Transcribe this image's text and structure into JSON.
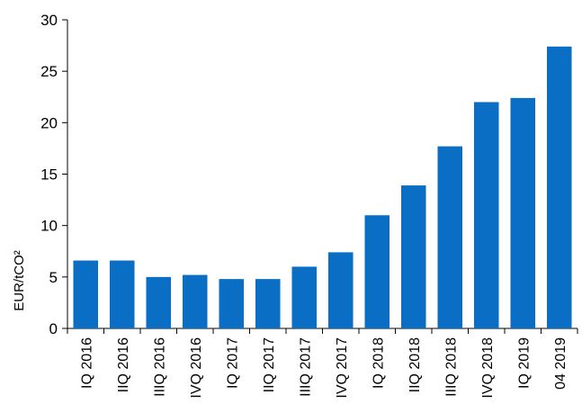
{
  "chart_data": {
    "type": "bar",
    "title": "",
    "xlabel": "",
    "ylabel": "EUR/tCO²",
    "ylim": [
      0,
      30
    ],
    "yticks": [
      0,
      5,
      10,
      15,
      20,
      25,
      30
    ],
    "grid": false,
    "legend": "none",
    "bar_color": "#0A6EC4",
    "categories": [
      "IQ 2016",
      "IIQ 2016",
      "IIIQ 2016",
      "IVQ 2016",
      "IQ 2017",
      "IIQ 2017",
      "IIIQ 2017",
      "IVQ 2017",
      "IQ 2018",
      "IIQ 2018",
      "IIIQ 2018",
      "IVQ 2018",
      "IQ 2019",
      "04 2019"
    ],
    "values": [
      6.6,
      6.6,
      5.0,
      5.2,
      4.8,
      4.8,
      6.0,
      7.4,
      11.0,
      13.9,
      17.7,
      22.0,
      22.4,
      27.4
    ]
  }
}
